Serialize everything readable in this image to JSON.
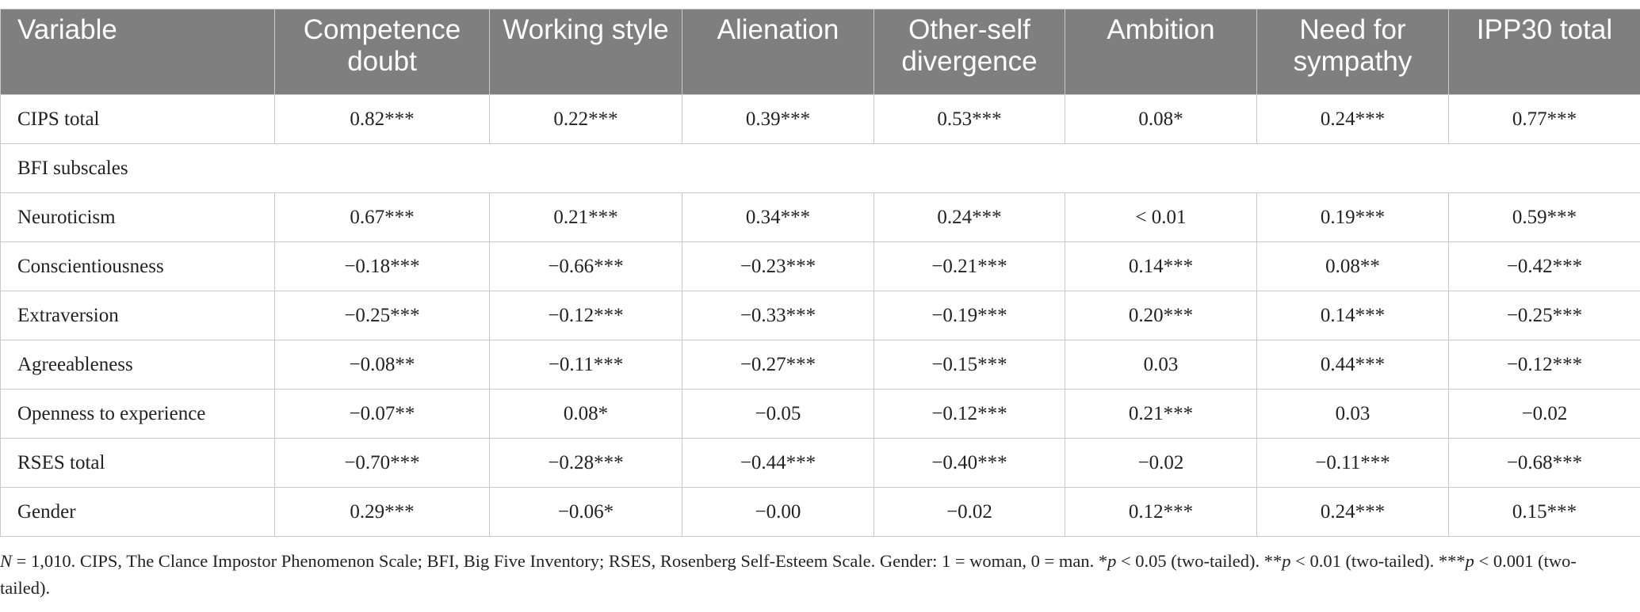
{
  "header": {
    "columns": [
      "Variable",
      "Competence doubt",
      "Working style",
      "Alienation",
      "Other-self divergence",
      "Ambition",
      "Need for sympathy",
      "IPP30 total"
    ]
  },
  "table": {
    "rows": [
      [
        "CIPS total",
        "0.82***",
        "0.22***",
        "0.39***",
        "0.53***",
        "0.08*",
        "0.24***",
        "0.77***"
      ],
      [
        "BFI subscales"
      ],
      [
        "Neuroticism",
        "0.67***",
        "0.21***",
        "0.34***",
        "0.24***",
        "< 0.01",
        "0.19***",
        "0.59***"
      ],
      [
        "Conscientiousness",
        "−0.18***",
        "−0.66***",
        "−0.23***",
        "−0.21***",
        "0.14***",
        "0.08**",
        "−0.42***"
      ],
      [
        "Extraversion",
        "−0.25***",
        "−0.12***",
        "−0.33***",
        "−0.19***",
        "0.20***",
        "0.14***",
        "−0.25***"
      ],
      [
        "Agreeableness",
        "−0.08**",
        "−0.11***",
        "−0.27***",
        "−0.15***",
        "0.03",
        "0.44***",
        "−0.12***"
      ],
      [
        "Openness to experience",
        "−0.07**",
        "0.08*",
        "−0.05",
        "−0.12***",
        "0.21***",
        "0.03",
        "−0.02"
      ],
      [
        "RSES total",
        "−0.70***",
        "−0.28***",
        "−0.44***",
        "−0.40***",
        "−0.02",
        "−0.11***",
        "−0.68***"
      ],
      [
        "Gender",
        "0.29***",
        "−0.06*",
        "−0.00",
        "−0.02",
        "0.12***",
        "0.24***",
        "0.15***"
      ]
    ]
  },
  "footnote": [
    "N",
    " = 1,010. CIPS, The Clance Impostor Phenomenon Scale; BFI, Big Five Inventory; RSES, Rosenberg Self-Esteem Scale. Gender: 1 = woman, 0 = man. *",
    "p",
    " < 0.05 (two-tailed). **",
    "p",
    " < 0.01 (two-tailed). ***",
    "p",
    " < 0.001 (two-tailed)."
  ]
}
